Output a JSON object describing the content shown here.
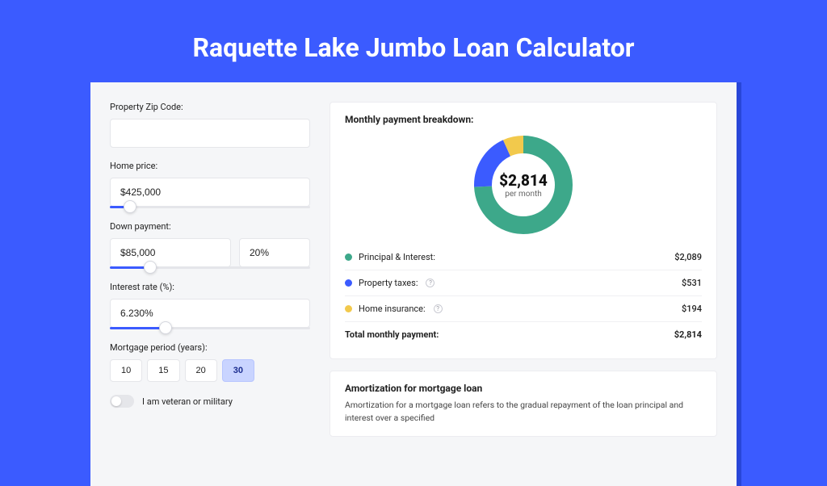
{
  "title": "Raquette Lake Jumbo Loan Calculator",
  "form": {
    "zip": {
      "label": "Property Zip Code:",
      "value": ""
    },
    "home_price": {
      "label": "Home price:",
      "value": "$425,000",
      "slider_pct": 10
    },
    "down_payment": {
      "label": "Down payment:",
      "value": "$85,000",
      "pct_value": "20%",
      "slider_pct": 20
    },
    "interest_rate": {
      "label": "Interest rate (%):",
      "value": "6.230%",
      "slider_pct": 28
    },
    "mortgage_period": {
      "label": "Mortgage period (years):",
      "options": [
        "10",
        "15",
        "20",
        "30"
      ],
      "selected": "30"
    },
    "veteran": {
      "label": "I am veteran or military",
      "checked": false
    }
  },
  "breakdown": {
    "title": "Monthly payment breakdown:",
    "center_amount": "$2,814",
    "center_sub": "per month",
    "donut": {
      "radius": 50,
      "stroke": 22,
      "slices": [
        {
          "key": "principal_interest",
          "color": "#3da88a",
          "pct": 74.2
        },
        {
          "key": "property_taxes",
          "color": "#3b5bff",
          "pct": 18.9
        },
        {
          "key": "home_insurance",
          "color": "#f2c94c",
          "pct": 6.9
        }
      ]
    },
    "rows": [
      {
        "key": "principal_interest",
        "label": "Principal & Interest:",
        "color": "#3da88a",
        "value": "$2,089",
        "info": false
      },
      {
        "key": "property_taxes",
        "label": "Property taxes:",
        "color": "#3b5bff",
        "value": "$531",
        "info": true
      },
      {
        "key": "home_insurance",
        "label": "Home insurance:",
        "color": "#f2c94c",
        "value": "$194",
        "info": true
      }
    ],
    "total": {
      "label": "Total monthly payment:",
      "value": "$2,814"
    }
  },
  "amortization": {
    "title": "Amortization for mortgage loan",
    "text": "Amortization for a mortgage loan refers to the gradual repayment of the loan principal and interest over a specified"
  },
  "colors": {
    "page_bg": "#3b5bff",
    "shadow": "#2846d8",
    "panel_bg": "#f5f6f8",
    "card_bg": "#ffffff",
    "border": "#e5e6ea"
  }
}
